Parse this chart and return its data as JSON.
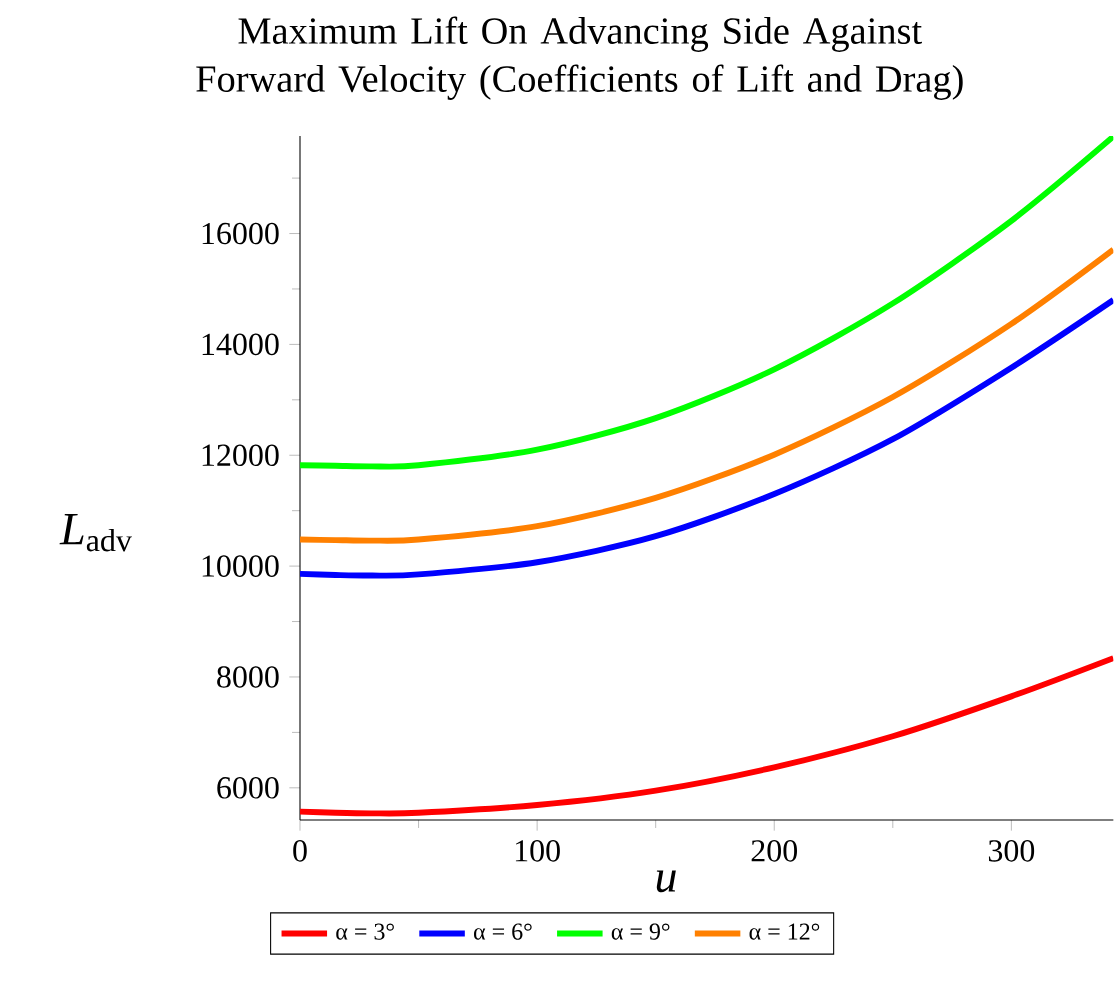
{
  "chart_data": {
    "type": "line",
    "title": "Maximum Lift On Advancing Side Against Forward Velocity (Coefficients of Lift and Drag)",
    "xlabel": "u",
    "ylabel": "*L*$_{adv}$",
    "x": [
      0,
      15,
      30,
      50,
      100,
      150,
      200,
      250,
      300,
      343
    ],
    "series": [
      {
        "name": "α = 3°",
        "color": "#ff0000",
        "values": [
          5570,
          5550,
          5540,
          5550,
          5690,
          5950,
          6370,
          6930,
          7650,
          8340
        ]
      },
      {
        "name": "α = 6°",
        "color": "#0000ff",
        "values": [
          9860,
          9840,
          9830,
          9850,
          10070,
          10540,
          11300,
          12290,
          13580,
          14800
        ]
      },
      {
        "name": "α = 9°",
        "color": "#00ff00",
        "values": [
          11820,
          11810,
          11800,
          11820,
          12100,
          12670,
          13550,
          14740,
          16230,
          17750
        ]
      },
      {
        "name": "α = 12°",
        "color": "#ff8000",
        "values": [
          10480,
          10470,
          10460,
          10480,
          10720,
          11230,
          12010,
          13050,
          14370,
          15710
        ]
      }
    ],
    "xlim": [
      0,
      343
    ],
    "ylim": [
      5420,
      17760
    ],
    "xticks": [
      0,
      {
        "value": 50,
        "label": null
      },
      100,
      {
        "value": 150,
        "label": null
      },
      200,
      {
        "value": 250,
        "label": null
      },
      300
    ],
    "yticks": [
      6000,
      {
        "value": 7000,
        "label": null
      },
      8000,
      {
        "value": 9000,
        "label": null
      },
      10000,
      {
        "value": 11000,
        "label": null
      },
      12000,
      {
        "value": 13000,
        "label": null
      },
      14000,
      {
        "value": 15000,
        "label": null
      },
      16000,
      {
        "value": 17000,
        "label": null
      }
    ],
    "legend": "bottom",
    "line_style": "solid",
    "grid": false
  }
}
